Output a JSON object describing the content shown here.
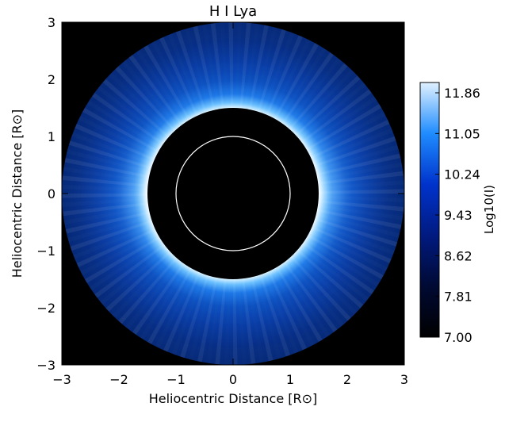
{
  "chart_data": {
    "type": "heatmap",
    "title": "H I Lya",
    "xlabel": "Heliocentric Distance [R⊙]",
    "ylabel": "Heliocentric Distance [R⊙]",
    "xlim": [
      -3,
      3
    ],
    "ylim": [
      -3,
      3
    ],
    "x_ticks": [
      -3,
      -2,
      -1,
      0,
      1,
      2,
      3
    ],
    "y_ticks": [
      -3,
      -2,
      -1,
      0,
      1,
      2,
      3
    ],
    "image": {
      "occulter_radius": 1.5,
      "outer_radius": 3.0,
      "solar_limb_radius": 1.0,
      "background": "#000000",
      "limb_color": "#ffffff"
    },
    "colorbar": {
      "label": "Log10(I)",
      "min": 7.0,
      "max": 11.86,
      "tick_labels": [
        "11.86",
        "11.05",
        "10.24",
        "9.43",
        "8.62",
        "7.81",
        "7.00"
      ],
      "stops": [
        "#000000",
        "#000a33",
        "#001a80",
        "#0033cc",
        "#1f8cff",
        "#dff1ff"
      ]
    }
  }
}
